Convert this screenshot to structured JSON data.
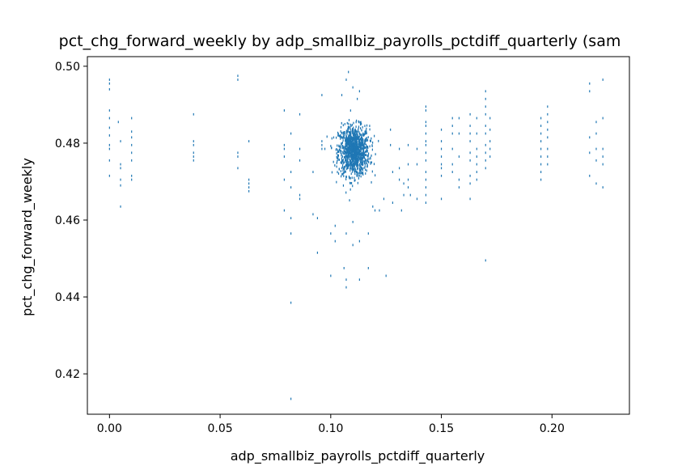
{
  "chart_data": {
    "type": "scatter",
    "title": "pct_chg_forward_weekly by adp_smallbiz_payrolls_pctdiff_quarterly (sam",
    "xlabel": "adp_smallbiz_payrolls_pctdiff_quarterly",
    "ylabel": "pct_chg_forward_weekly",
    "xlim": [
      -0.01,
      0.235
    ],
    "ylim": [
      0.4095,
      0.5025
    ],
    "xticks": [
      0.0,
      0.05,
      0.1,
      0.15,
      0.2
    ],
    "xtick_labels": [
      "0.00",
      "0.05",
      "0.10",
      "0.15",
      "0.20"
    ],
    "yticks": [
      0.42,
      0.44,
      0.46,
      0.48,
      0.5
    ],
    "ytick_labels": [
      "0.42",
      "0.44",
      "0.46",
      "0.48",
      "0.50"
    ],
    "grid": false,
    "marker_color": "#1f77b4",
    "series": [
      {
        "points": [
          [
            0.0,
            0.4965
          ],
          [
            0.0,
            0.4955
          ],
          [
            0.0,
            0.494
          ],
          [
            0.0,
            0.4885
          ],
          [
            0.0,
            0.4865
          ],
          [
            0.0,
            0.484
          ],
          [
            0.0,
            0.482
          ],
          [
            0.0,
            0.4795
          ],
          [
            0.0,
            0.4785
          ],
          [
            0.0,
            0.4755
          ],
          [
            0.0,
            0.4715
          ],
          [
            0.004,
            0.4855
          ],
          [
            0.005,
            0.4805
          ],
          [
            0.005,
            0.4745
          ],
          [
            0.005,
            0.4735
          ],
          [
            0.005,
            0.4705
          ],
          [
            0.005,
            0.469
          ],
          [
            0.005,
            0.4635
          ],
          [
            0.01,
            0.4865
          ],
          [
            0.01,
            0.483
          ],
          [
            0.01,
            0.4815
          ],
          [
            0.01,
            0.4795
          ],
          [
            0.01,
            0.4775
          ],
          [
            0.01,
            0.4755
          ],
          [
            0.01,
            0.4715
          ],
          [
            0.01,
            0.4705
          ],
          [
            0.038,
            0.4875
          ],
          [
            0.038,
            0.4805
          ],
          [
            0.038,
            0.4795
          ],
          [
            0.038,
            0.4775
          ],
          [
            0.038,
            0.4765
          ],
          [
            0.038,
            0.4755
          ],
          [
            0.058,
            0.4975
          ],
          [
            0.058,
            0.4965
          ],
          [
            0.058,
            0.4775
          ],
          [
            0.058,
            0.4765
          ],
          [
            0.058,
            0.4735
          ],
          [
            0.063,
            0.4805
          ],
          [
            0.063,
            0.4705
          ],
          [
            0.063,
            0.4695
          ],
          [
            0.063,
            0.4685
          ],
          [
            0.063,
            0.4675
          ],
          [
            0.079,
            0.4885
          ],
          [
            0.079,
            0.4795
          ],
          [
            0.079,
            0.4785
          ],
          [
            0.079,
            0.4765
          ],
          [
            0.079,
            0.4705
          ],
          [
            0.079,
            0.4625
          ],
          [
            0.082,
            0.4825
          ],
          [
            0.082,
            0.4725
          ],
          [
            0.082,
            0.4685
          ],
          [
            0.082,
            0.4605
          ],
          [
            0.082,
            0.4565
          ],
          [
            0.082,
            0.4385
          ],
          [
            0.082,
            0.4135
          ],
          [
            0.086,
            0.4875
          ],
          [
            0.086,
            0.4785
          ],
          [
            0.086,
            0.4755
          ],
          [
            0.086,
            0.4665
          ],
          [
            0.086,
            0.4655
          ],
          [
            0.092,
            0.4725
          ],
          [
            0.092,
            0.4615
          ],
          [
            0.094,
            0.4515
          ],
          [
            0.094,
            0.4605
          ],
          [
            0.096,
            0.4925
          ],
          [
            0.096,
            0.4805
          ],
          [
            0.096,
            0.4795
          ],
          [
            0.096,
            0.4785
          ],
          [
            0.1,
            0.4565
          ],
          [
            0.1,
            0.4455
          ],
          [
            0.102,
            0.4545
          ],
          [
            0.102,
            0.4585
          ],
          [
            0.106,
            0.4475
          ],
          [
            0.107,
            0.4445
          ],
          [
            0.107,
            0.4425
          ],
          [
            0.107,
            0.4565
          ],
          [
            0.11,
            0.4535
          ],
          [
            0.11,
            0.4595
          ],
          [
            0.113,
            0.4445
          ],
          [
            0.113,
            0.4545
          ],
          [
            0.117,
            0.4475
          ],
          [
            0.117,
            0.4565
          ],
          [
            0.125,
            0.4455
          ],
          [
            0.108,
            0.4985
          ],
          [
            0.107,
            0.4965
          ],
          [
            0.11,
            0.4945
          ],
          [
            0.112,
            0.4915
          ],
          [
            0.105,
            0.4925
          ],
          [
            0.113,
            0.4935
          ],
          [
            0.119,
            0.4635
          ],
          [
            0.12,
            0.4625
          ],
          [
            0.122,
            0.4625
          ],
          [
            0.124,
            0.4655
          ],
          [
            0.128,
            0.4645
          ],
          [
            0.132,
            0.4625
          ],
          [
            0.136,
            0.4665
          ],
          [
            0.139,
            0.4655
          ],
          [
            0.127,
            0.4835
          ],
          [
            0.127,
            0.4795
          ],
          [
            0.128,
            0.4725
          ],
          [
            0.131,
            0.4785
          ],
          [
            0.131,
            0.4735
          ],
          [
            0.131,
            0.4705
          ],
          [
            0.133,
            0.4695
          ],
          [
            0.133,
            0.4665
          ],
          [
            0.135,
            0.4795
          ],
          [
            0.135,
            0.4745
          ],
          [
            0.135,
            0.4705
          ],
          [
            0.135,
            0.4685
          ],
          [
            0.139,
            0.4785
          ],
          [
            0.139,
            0.4745
          ],
          [
            0.143,
            0.4895
          ],
          [
            0.143,
            0.4885
          ],
          [
            0.143,
            0.4855
          ],
          [
            0.143,
            0.4845
          ],
          [
            0.143,
            0.4825
          ],
          [
            0.143,
            0.4805
          ],
          [
            0.143,
            0.4795
          ],
          [
            0.143,
            0.4775
          ],
          [
            0.143,
            0.4755
          ],
          [
            0.143,
            0.4725
          ],
          [
            0.143,
            0.4705
          ],
          [
            0.143,
            0.4685
          ],
          [
            0.143,
            0.4665
          ],
          [
            0.143,
            0.4645
          ],
          [
            0.15,
            0.4835
          ],
          [
            0.15,
            0.4805
          ],
          [
            0.15,
            0.4785
          ],
          [
            0.15,
            0.4765
          ],
          [
            0.15,
            0.4745
          ],
          [
            0.15,
            0.4735
          ],
          [
            0.15,
            0.4715
          ],
          [
            0.15,
            0.4655
          ],
          [
            0.155,
            0.4865
          ],
          [
            0.155,
            0.4845
          ],
          [
            0.155,
            0.4825
          ],
          [
            0.155,
            0.4785
          ],
          [
            0.155,
            0.4745
          ],
          [
            0.155,
            0.4725
          ],
          [
            0.158,
            0.4865
          ],
          [
            0.158,
            0.4825
          ],
          [
            0.158,
            0.4765
          ],
          [
            0.158,
            0.4705
          ],
          [
            0.158,
            0.4685
          ],
          [
            0.163,
            0.4875
          ],
          [
            0.163,
            0.4845
          ],
          [
            0.163,
            0.4825
          ],
          [
            0.163,
            0.4805
          ],
          [
            0.163,
            0.4775
          ],
          [
            0.163,
            0.4755
          ],
          [
            0.163,
            0.4715
          ],
          [
            0.163,
            0.4695
          ],
          [
            0.163,
            0.4655
          ],
          [
            0.166,
            0.4865
          ],
          [
            0.166,
            0.4825
          ],
          [
            0.166,
            0.4785
          ],
          [
            0.166,
            0.4765
          ],
          [
            0.166,
            0.4745
          ],
          [
            0.166,
            0.4725
          ],
          [
            0.166,
            0.4705
          ],
          [
            0.17,
            0.4935
          ],
          [
            0.17,
            0.4915
          ],
          [
            0.17,
            0.4895
          ],
          [
            0.17,
            0.4875
          ],
          [
            0.17,
            0.4845
          ],
          [
            0.17,
            0.4825
          ],
          [
            0.17,
            0.4795
          ],
          [
            0.17,
            0.4775
          ],
          [
            0.17,
            0.4755
          ],
          [
            0.17,
            0.4735
          ],
          [
            0.17,
            0.4495
          ],
          [
            0.172,
            0.4865
          ],
          [
            0.172,
            0.4835
          ],
          [
            0.172,
            0.4805
          ],
          [
            0.172,
            0.4785
          ],
          [
            0.172,
            0.4765
          ],
          [
            0.195,
            0.4865
          ],
          [
            0.195,
            0.4845
          ],
          [
            0.195,
            0.4825
          ],
          [
            0.195,
            0.4805
          ],
          [
            0.195,
            0.4785
          ],
          [
            0.195,
            0.4765
          ],
          [
            0.195,
            0.4745
          ],
          [
            0.195,
            0.4725
          ],
          [
            0.195,
            0.4705
          ],
          [
            0.198,
            0.4895
          ],
          [
            0.198,
            0.4875
          ],
          [
            0.198,
            0.4855
          ],
          [
            0.198,
            0.4835
          ],
          [
            0.198,
            0.4815
          ],
          [
            0.198,
            0.4785
          ],
          [
            0.198,
            0.4765
          ],
          [
            0.198,
            0.4745
          ],
          [
            0.217,
            0.4955
          ],
          [
            0.217,
            0.4935
          ],
          [
            0.217,
            0.4815
          ],
          [
            0.217,
            0.4715
          ],
          [
            0.217,
            0.4775
          ],
          [
            0.22,
            0.4855
          ],
          [
            0.22,
            0.4825
          ],
          [
            0.22,
            0.4785
          ],
          [
            0.22,
            0.4755
          ],
          [
            0.22,
            0.4695
          ],
          [
            0.223,
            0.4965
          ],
          [
            0.223,
            0.4865
          ],
          [
            0.223,
            0.4785
          ],
          [
            0.223,
            0.4765
          ],
          [
            0.223,
            0.4745
          ],
          [
            0.223,
            0.4685
          ]
        ],
        "cluster": {
          "x_center": 0.1105,
          "x_spread": 0.0035,
          "y_center": 0.478,
          "y_spread": 0.0032,
          "count": 1100
        }
      }
    ]
  }
}
